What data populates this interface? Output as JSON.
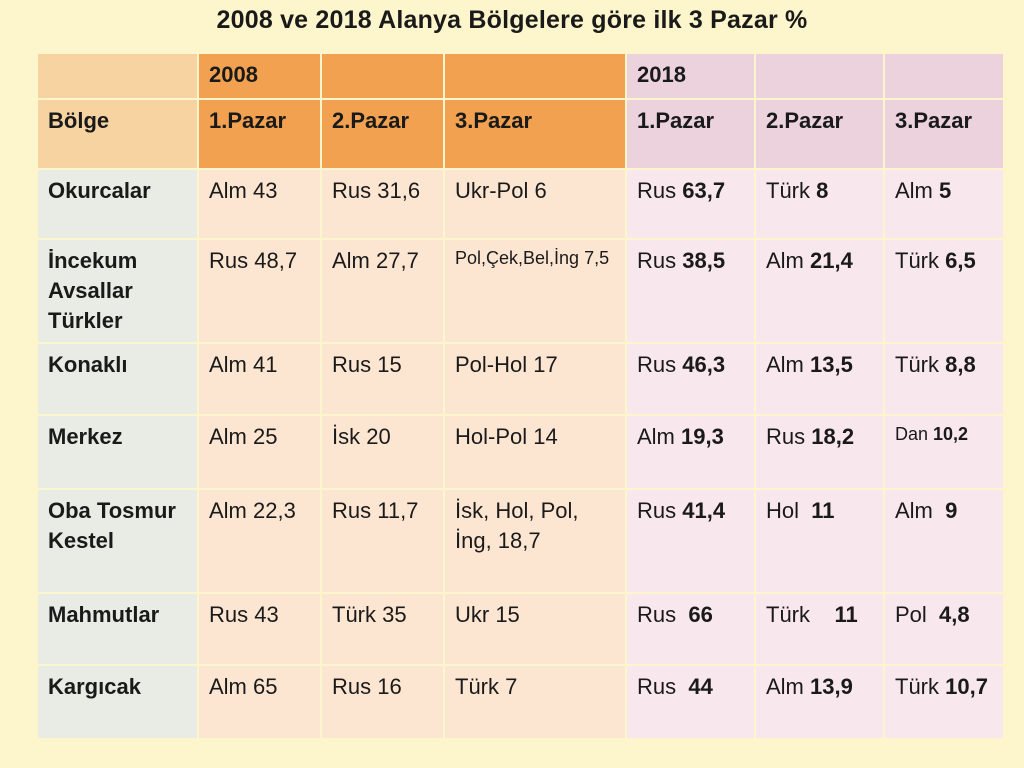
{
  "title": "2008 ve 2018 Alanya Bölgelere göre ilk 3 Pazar %",
  "years": [
    "2008",
    "2018"
  ],
  "headers": {
    "region": "Bölge",
    "cols": [
      "1.Pazar",
      "2.Pazar",
      "3.Pazar",
      "1.Pazar",
      "2.Pazar",
      "3.Pazar"
    ]
  },
  "rows": [
    {
      "region": "Okurcalar",
      "m2008": [
        "Alm 43",
        "Rus 31,6",
        "Ukr-Pol 6"
      ],
      "m2018": [
        {
          "label": "Rus ",
          "value": "63,7"
        },
        {
          "label": "Türk ",
          "value": "8"
        },
        {
          "label": "Alm ",
          "value": "5"
        }
      ]
    },
    {
      "region": "İncekum Avsallar Türkler",
      "m2008": [
        "Rus 48,7",
        "Alm 27,7",
        "Pol,Çek,Bel,İng 7,5"
      ],
      "m2018": [
        {
          "label": "Rus ",
          "value": "38,5"
        },
        {
          "label": "Alm ",
          "value": "21,4"
        },
        {
          "label": "Türk ",
          "value": "6,5"
        }
      ]
    },
    {
      "region": "Konaklı",
      "m2008": [
        "Alm 41",
        "Rus 15",
        "Pol-Hol 17"
      ],
      "m2018": [
        {
          "label": "Rus ",
          "value": "46,3"
        },
        {
          "label": "Alm ",
          "value": "13,5"
        },
        {
          "label": "Türk ",
          "value": "8,8"
        }
      ]
    },
    {
      "region": "Merkez",
      "m2008": [
        "Alm 25",
        "İsk  20",
        "Hol-Pol 14"
      ],
      "m2018": [
        {
          "label": "Alm ",
          "value": "19,3"
        },
        {
          "label": "Rus ",
          "value": "18,2"
        },
        {
          "label": "Dan ",
          "value": "10,2"
        }
      ]
    },
    {
      "region": "Oba Tosmur Kestel",
      "m2008": [
        "Alm 22,3",
        "Rus 11,7",
        "İsk, Hol, Pol, İng,      18,7"
      ],
      "m2018": [
        {
          "label": "Rus ",
          "value": "41,4"
        },
        {
          "label": "Hol  ",
          "value": "11"
        },
        {
          "label": "Alm  ",
          "value": "9"
        }
      ]
    },
    {
      "region": "Mahmutlar",
      "m2008": [
        "Rus  43",
        "Türk  35",
        "Ukr   15"
      ],
      "m2018": [
        {
          "label": "Rus  ",
          "value": "66"
        },
        {
          "label": "Türk    ",
          "value": "11"
        },
        {
          "label": "Pol  ",
          "value": "4,8"
        }
      ]
    },
    {
      "region": "Kargıcak",
      "m2008": [
        "Alm  65",
        "Rus    16",
        "Türk  7"
      ],
      "m2018": [
        {
          "label": "Rus  ",
          "value": "44"
        },
        {
          "label": "Alm ",
          "value": "13,9"
        },
        {
          "label": "Türk ",
          "value": "10,7"
        }
      ]
    }
  ]
}
